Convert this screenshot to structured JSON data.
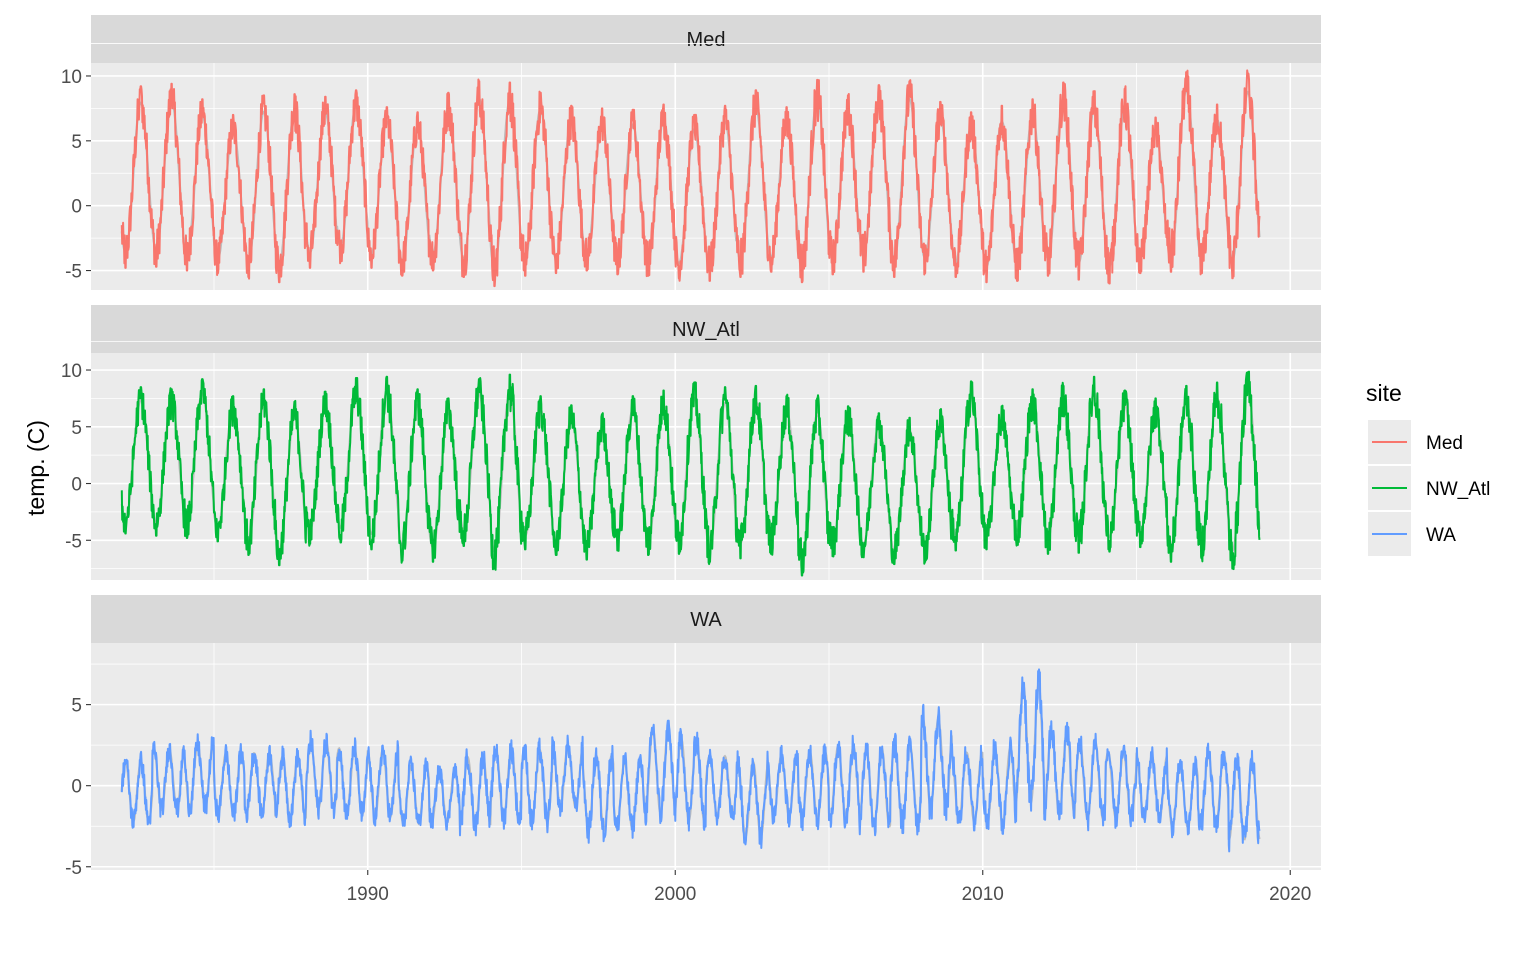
{
  "chart_data": {
    "type": "line",
    "ylabel": "temp. (C)",
    "xlabel": "",
    "legend": {
      "title": "site",
      "placement": "right",
      "entries": [
        {
          "name": "Med",
          "color": "#f8766d"
        },
        {
          "name": "NW_Atl",
          "color": "#00ba38"
        },
        {
          "name": "WA",
          "color": "#619cff"
        }
      ]
    },
    "climatology_color": "#bdbdbd",
    "grid": true,
    "xlim": [
      "1981",
      "2021"
    ],
    "x_ticks": [
      "1990",
      "2000",
      "2010",
      "2020"
    ],
    "x_start": "1982-01",
    "panels": [
      {
        "name": "Med",
        "color": "#f8766d",
        "ylim": [
          -6.5,
          11
        ],
        "y_ticks": [
          "10",
          "5",
          "0",
          "-5"
        ],
        "series": [
          {
            "name": "Med",
            "x": [
              "1982-01",
              "1983-01",
              "1984-01",
              "1985-01",
              "1986-01",
              "1987-01",
              "1988-01",
              "1989-01",
              "1990-01",
              "1991-01",
              "1992-01",
              "1993-01",
              "1994-01",
              "1995-01",
              "1996-01",
              "1997-01",
              "1998-01",
              "1999-01",
              "2000-01",
              "2001-01",
              "2002-01",
              "2003-01",
              "2004-01",
              "2005-01",
              "2006-01",
              "2007-01",
              "2008-01",
              "2009-01",
              "2010-01",
              "2011-01",
              "2012-01",
              "2013-01",
              "2014-01",
              "2015-01",
              "2016-01",
              "2017-01",
              "2018-01"
            ],
            "annual_max": [
              9.2,
              9.4,
              8.2,
              7.0,
              8.5,
              8.6,
              8.4,
              8.9,
              7.6,
              7.2,
              8.7,
              9.6,
              9.5,
              8.7,
              7.7,
              7.5,
              7.4,
              7.8,
              7.0,
              7.7,
              8.9,
              7.6,
              9.7,
              8.5,
              9.3,
              9.6,
              8.0,
              7.2,
              7.7,
              8.2,
              9.5,
              8.7,
              9.0,
              6.8,
              10.3,
              7.8,
              10.2
            ],
            "annual_min": [
              -4.8,
              -4.7,
              -5.0,
              -5.2,
              -5.5,
              -5.9,
              -4.8,
              -4.2,
              -4.8,
              -5.4,
              -5.0,
              -5.5,
              -6.2,
              -5.4,
              -5.2,
              -5.0,
              -5.3,
              -5.4,
              -5.6,
              -5.8,
              -5.5,
              -5.1,
              -5.9,
              -5.3,
              -5.1,
              -5.5,
              -5.2,
              -5.5,
              -5.9,
              -5.8,
              -5.4,
              -5.7,
              -6.0,
              -5.2,
              -5.1,
              -5.2,
              -5.6
            ]
          }
        ]
      },
      {
        "name": "NW_Atl",
        "color": "#00ba38",
        "ylim": [
          -8.5,
          11.5
        ],
        "y_ticks": [
          "10",
          "5",
          "0",
          "-5"
        ],
        "series": [
          {
            "name": "NW_Atl",
            "x": [
              "1982-01",
              "1983-01",
              "1984-01",
              "1985-01",
              "1986-01",
              "1987-01",
              "1988-01",
              "1989-01",
              "1990-01",
              "1991-01",
              "1992-01",
              "1993-01",
              "1994-01",
              "1995-01",
              "1996-01",
              "1997-01",
              "1998-01",
              "1999-01",
              "2000-01",
              "2001-01",
              "2002-01",
              "2003-01",
              "2004-01",
              "2005-01",
              "2006-01",
              "2007-01",
              "2008-01",
              "2009-01",
              "2010-01",
              "2011-01",
              "2012-01",
              "2013-01",
              "2014-01",
              "2015-01",
              "2016-01",
              "2017-01",
              "2018-01"
            ],
            "annual_max": [
              8.5,
              8.3,
              9.2,
              7.7,
              8.3,
              7.2,
              8.1,
              9.3,
              9.4,
              8.3,
              7.5,
              9.2,
              9.6,
              7.7,
              6.9,
              6.1,
              7.7,
              8.2,
              8.9,
              8.5,
              8.6,
              7.7,
              7.5,
              6.8,
              6.2,
              5.8,
              6.5,
              9.0,
              6.8,
              8.3,
              8.6,
              9.4,
              8.2,
              7.5,
              8.6,
              8.9,
              9.8
            ],
            "annual_min": [
              -4.4,
              -4.6,
              -4.8,
              -5.1,
              -6.3,
              -7.2,
              -5.3,
              -5.2,
              -5.8,
              -6.8,
              -6.9,
              -5.5,
              -7.5,
              -5.8,
              -6.3,
              -6.7,
              -5.9,
              -6.3,
              -6.2,
              -6.9,
              -6.6,
              -6.2,
              -8.1,
              -6.4,
              -6.5,
              -7.1,
              -6.9,
              -5.9,
              -5.8,
              -5.4,
              -6.2,
              -6.1,
              -6.0,
              -5.6,
              -6.9,
              -6.6,
              -7.5
            ]
          }
        ]
      },
      {
        "name": "WA",
        "color": "#619cff",
        "ylim": [
          -5.2,
          8.8
        ],
        "y_ticks": [
          "5",
          "0",
          "-5"
        ],
        "series": [
          {
            "name": "WA",
            "x": [
              "1982-01",
              "1983-01",
              "1984-01",
              "1985-01",
              "1986-01",
              "1987-01",
              "1988-01",
              "1989-01",
              "1990-01",
              "1991-01",
              "1992-01",
              "1993-01",
              "1994-01",
              "1995-01",
              "1996-01",
              "1997-01",
              "1998-01",
              "1999-01",
              "2000-01",
              "2001-01",
              "2002-01",
              "2003-01",
              "2004-01",
              "2005-01",
              "2006-01",
              "2007-01",
              "2008-01",
              "2009-01",
              "2010-01",
              "2011-01",
              "2012-01",
              "2013-01",
              "2014-01",
              "2015-01",
              "2016-01",
              "2017-01",
              "2018-01"
            ],
            "annual_max": [
              2.5,
              3.3,
              3.6,
              3.0,
              3.0,
              2.8,
              3.8,
              3.4,
              3.3,
              2.2,
              1.8,
              2.9,
              3.4,
              3.4,
              3.5,
              3.1,
              2.6,
              4.9,
              4.3,
              2.8,
              2.7,
              2.9,
              3.2,
              3.6,
              3.6,
              3.8,
              5.6,
              3.2,
              3.6,
              8.2,
              4.8,
              4.0,
              3.2,
              2.9,
              2.3,
              3.1,
              2.8
            ],
            "annual_min": [
              -3.2,
              -2.5,
              -2.4,
              -2.8,
              -2.7,
              -3.0,
              -2.5,
              -2.9,
              -3.0,
              -3.3,
              -3.1,
              -3.6,
              -3.2,
              -3.4,
              -2.4,
              -4.0,
              -3.7,
              -3.1,
              -3.5,
              -2.8,
              -4.4,
              -2.9,
              -3.2,
              -3.2,
              -3.8,
              -3.6,
              -2.9,
              -3.4,
              -3.7,
              -3.0,
              -3.2,
              -3.3,
              -3.1,
              -3.1,
              -3.6,
              -3.6,
              -4.6
            ]
          }
        ]
      }
    ]
  }
}
